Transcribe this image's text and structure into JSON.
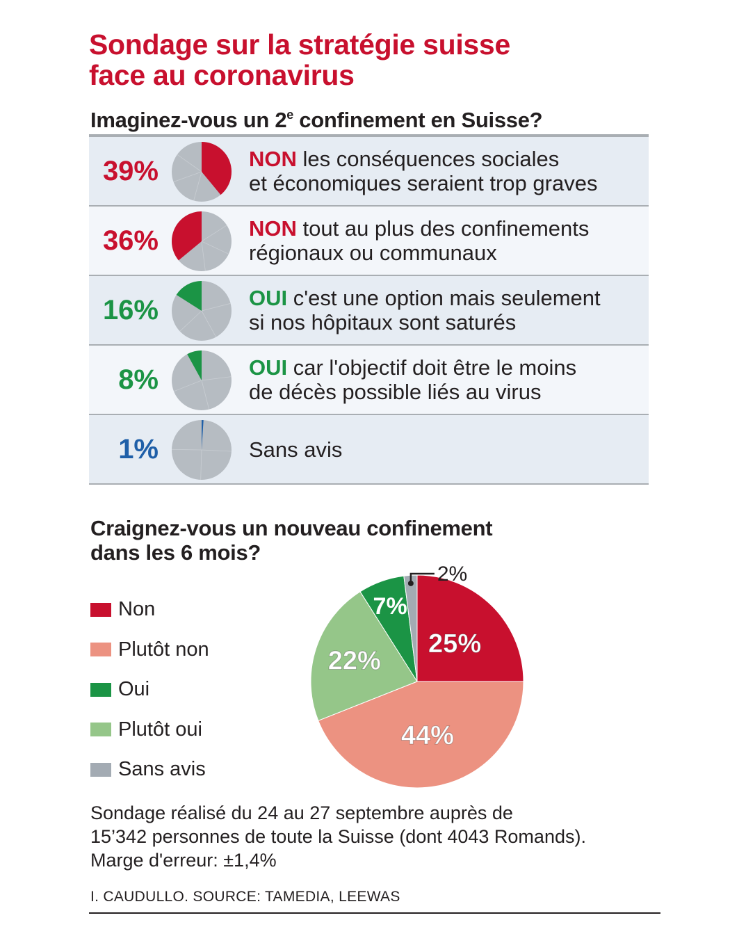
{
  "title_line1": "Sondage sur la stratégie suisse",
  "title_line2": "face au coronavirus",
  "chart_data": [
    {
      "type": "pie",
      "title": "Imaginez-vous un 2e confinement en Suisse?",
      "title_main": "Imaginez-vous un 2",
      "title_sup": "e",
      "title_rest": " confinement en Suisse?",
      "slice_rest_color": "#b6bcc2",
      "items": [
        {
          "label": "39%",
          "value": 39,
          "color": "#c8102e",
          "keyword": "NON",
          "line1": " les conséquences sociales",
          "line2": "et économiques seraient trop graves",
          "start": "clockwise"
        },
        {
          "label": "36%",
          "value": 36,
          "color": "#c8102e",
          "keyword": "NON",
          "line1": " tout au plus des confinements",
          "line2": "régionaux ou communaux",
          "start": "counterclockwise"
        },
        {
          "label": "16%",
          "value": 16,
          "color": "#1b9445",
          "keyword": "OUI",
          "line1": " c'est une option mais seulement",
          "line2": "si nos hôpitaux sont saturés",
          "start": "counterclockwise"
        },
        {
          "label": "8%",
          "value": 8,
          "color": "#1b9445",
          "keyword": "OUI",
          "line1": " car l'objectif doit être le moins",
          "line2": "de décès possible liés au virus",
          "start": "counterclockwise"
        },
        {
          "label": "1%",
          "value": 1,
          "color": "#1f5fa8",
          "keyword": "",
          "line1": "Sans avis",
          "line2": "",
          "start": "clockwise"
        }
      ]
    },
    {
      "type": "pie",
      "title": "Craignez-vous un nouveau confinement dans les 6 mois?",
      "slices": [
        {
          "name": "Non",
          "value": 25,
          "label": "25%",
          "color": "#c8102e"
        },
        {
          "name": "Plutôt non",
          "value": 44,
          "label": "44%",
          "color": "#ec9281"
        },
        {
          "name": "Plutôt oui",
          "value": 22,
          "label": "22%",
          "color": "#95c689"
        },
        {
          "name": "Oui",
          "value": 7,
          "label": "7%",
          "color": "#1b9445"
        },
        {
          "name": "Sans avis",
          "value": 2,
          "label": "2%",
          "color": "#a3abb3"
        }
      ],
      "legend": [
        {
          "name": "Non",
          "color": "#c8102e"
        },
        {
          "name": "Plutôt non",
          "color": "#ec9281"
        },
        {
          "name": "Oui",
          "color": "#1b9445"
        },
        {
          "name": "Plutôt oui",
          "color": "#95c689"
        },
        {
          "name": "Sans avis",
          "color": "#a3abb3"
        }
      ]
    }
  ],
  "note_line1": "Sondage réalisé du 24 au 27 septembre auprès de",
  "note_line2": "15’342 personnes de toute la Suisse (dont 4043 Romands).",
  "note_line3": "Marge d'erreur: ±1,4%",
  "credit": "I. CAUDULLO. SOURCE: TAMEDIA, LEEWAS"
}
